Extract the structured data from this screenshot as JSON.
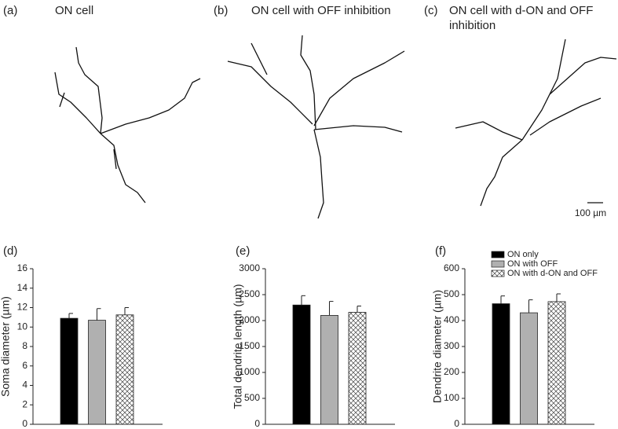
{
  "tracings": [
    {
      "label": "(a)",
      "title": "ON cell"
    },
    {
      "label": "(b)",
      "title": "ON cell with OFF inhibition"
    },
    {
      "label": "(c)",
      "title": "ON cell with d-ON and OFF",
      "title2": "inhibition"
    }
  ],
  "scale_bar": "100 µm",
  "chart_data": [
    {
      "type": "bar",
      "panel_label": "(d)",
      "ylabel": "Soma diameter (µm)",
      "categories": [
        null,
        null,
        null
      ],
      "values": [
        10.9,
        10.7,
        11.25
      ],
      "errors": [
        0.5,
        1.2,
        0.75
      ],
      "colors": [
        "#000000",
        "#b0b0b0",
        "crosshatch"
      ],
      "ylim": [
        0,
        16
      ],
      "yticks": [
        0,
        2,
        4,
        6,
        8,
        10,
        12,
        14,
        16
      ]
    },
    {
      "type": "bar",
      "panel_label": "(e)",
      "ylabel": "Total dendrite length (µm)",
      "categories": [
        null,
        null,
        null
      ],
      "values": [
        2300,
        2100,
        2160
      ],
      "errors": [
        180,
        270,
        120
      ],
      "colors": [
        "#000000",
        "#b0b0b0",
        "crosshatch"
      ],
      "ylim": [
        0,
        3000
      ],
      "yticks": [
        0,
        500,
        1000,
        1500,
        2000,
        2500,
        3000
      ]
    },
    {
      "type": "bar",
      "panel_label": "(f)",
      "ylabel": "Dendrite diameter (µm)",
      "categories": [
        null,
        null,
        null
      ],
      "values": [
        465,
        430,
        473
      ],
      "errors": [
        30,
        50,
        30
      ],
      "colors": [
        "#000000",
        "#b0b0b0",
        "crosshatch"
      ],
      "legend": [
        "ON only",
        "ON with OFF",
        "ON with d-ON and OFF"
      ],
      "ylim": [
        0,
        600
      ],
      "yticks": [
        0,
        100,
        200,
        300,
        400,
        500,
        600
      ]
    }
  ]
}
